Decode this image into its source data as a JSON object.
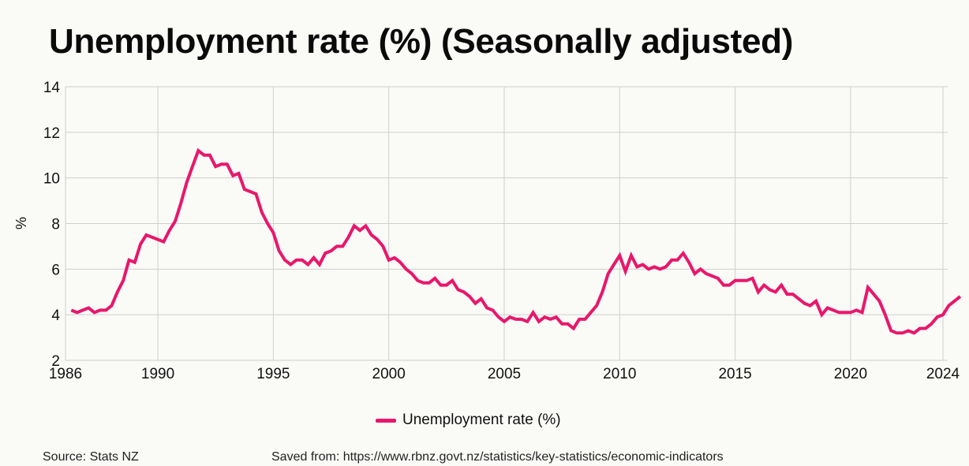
{
  "title": "Unemployment rate (%) (Seasonally adjusted)",
  "legend": {
    "label": "Unemployment rate (%)"
  },
  "footer": {
    "source": "Source: Stats NZ",
    "saved_from": "Saved from: https://www.rbnz.govt.nz/statistics/key-statistics/economic-indicators"
  },
  "colors": {
    "line": "#e8176b",
    "grid": "#cfcfcf",
    "background": "#fafaf7"
  },
  "chart_data": {
    "type": "line",
    "title": "Unemployment rate (%) (Seasonally adjusted)",
    "xlabel": "",
    "ylabel": "%",
    "xlim": [
      1986,
      2024
    ],
    "ylim": [
      2,
      14
    ],
    "x_ticks": [
      1986,
      1990,
      1995,
      2000,
      2005,
      2010,
      2015,
      2020,
      2024
    ],
    "x_tick_labels": [
      "1986",
      "1990",
      "1995",
      "2000",
      "2005",
      "2010",
      "2015",
      "2020",
      "2024"
    ],
    "y_ticks": [
      2,
      4,
      6,
      8,
      10,
      12,
      14
    ],
    "y_tick_labels": [
      "2",
      "4",
      "6",
      "8",
      "10",
      "12",
      "14"
    ],
    "grid": true,
    "legend_position": "bottom-center",
    "series": [
      {
        "name": "Unemployment rate (%)",
        "x_start": 1986.25,
        "x_step": 0.25,
        "values": [
          4.2,
          4.1,
          4.2,
          4.3,
          4.1,
          4.2,
          4.2,
          4.4,
          5.0,
          5.5,
          6.4,
          6.3,
          7.1,
          7.5,
          7.4,
          7.3,
          7.2,
          7.7,
          8.1,
          8.9,
          9.8,
          10.5,
          11.2,
          11.0,
          11.0,
          10.5,
          10.6,
          10.6,
          10.1,
          10.2,
          9.5,
          9.4,
          9.3,
          8.5,
          8.0,
          7.6,
          6.8,
          6.4,
          6.2,
          6.4,
          6.4,
          6.2,
          6.5,
          6.2,
          6.7,
          6.8,
          7.0,
          7.0,
          7.4,
          7.9,
          7.7,
          7.9,
          7.5,
          7.3,
          7.0,
          6.4,
          6.5,
          6.3,
          6.0,
          5.8,
          5.5,
          5.4,
          5.4,
          5.6,
          5.3,
          5.3,
          5.5,
          5.1,
          5.0,
          4.8,
          4.5,
          4.7,
          4.3,
          4.2,
          3.9,
          3.7,
          3.9,
          3.8,
          3.8,
          3.7,
          4.1,
          3.7,
          3.9,
          3.8,
          3.9,
          3.6,
          3.6,
          3.4,
          3.8,
          3.8,
          4.1,
          4.4,
          5.0,
          5.8,
          6.2,
          6.6,
          5.9,
          6.6,
          6.1,
          6.2,
          6.0,
          6.1,
          6.0,
          6.1,
          6.4,
          6.4,
          6.7,
          6.3,
          5.8,
          6.0,
          5.8,
          5.7,
          5.6,
          5.3,
          5.3,
          5.5,
          5.5,
          5.5,
          5.6,
          5.0,
          5.3,
          5.1,
          5.0,
          5.3,
          4.9,
          4.9,
          4.7,
          4.5,
          4.4,
          4.6,
          4.0,
          4.3,
          4.2,
          4.1,
          4.1,
          4.1,
          4.2,
          4.1,
          5.2,
          4.9,
          4.6,
          4.0,
          3.3,
          3.2,
          3.2,
          3.3,
          3.2,
          3.4,
          3.4,
          3.6,
          3.9,
          4.0,
          4.4,
          4.6,
          4.8
        ]
      }
    ]
  }
}
